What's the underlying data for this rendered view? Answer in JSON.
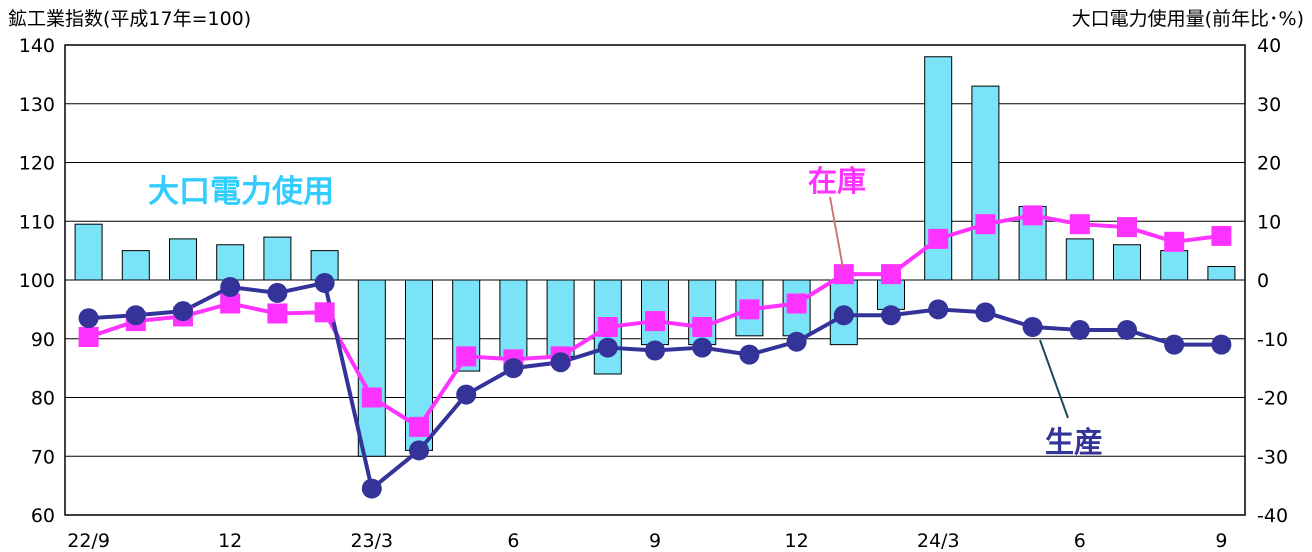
{
  "chart_data": {
    "type": "bar+line",
    "left_axis_title": "鉱工業指数(平成17年=100)",
    "right_axis_title": "大口電力使用量(前年比･%)",
    "left_axis": {
      "min": 60,
      "max": 140,
      "ticks": [
        60,
        70,
        80,
        90,
        100,
        110,
        120,
        130,
        140
      ]
    },
    "right_axis": {
      "min": -40,
      "max": 40,
      "ticks": [
        -40,
        -30,
        -20,
        -10,
        0,
        10,
        20,
        30,
        40
      ]
    },
    "grid": true,
    "x_tick_labels": [
      {
        "index": 0,
        "label": "22/9"
      },
      {
        "index": 3,
        "label": "12"
      },
      {
        "index": 6,
        "label": "23/3"
      },
      {
        "index": 9,
        "label": "6"
      },
      {
        "index": 12,
        "label": "9"
      },
      {
        "index": 15,
        "label": "12"
      },
      {
        "index": 18,
        "label": "24/3"
      },
      {
        "index": 21,
        "label": "6"
      },
      {
        "index": 24,
        "label": "9"
      }
    ],
    "series": [
      {
        "name": "大口電力使用",
        "kind": "bar",
        "axis": "right",
        "color": "#7be3f7",
        "values": [
          9.5,
          5,
          7,
          6,
          7.3,
          5,
          -30,
          -29,
          -15.5,
          -13.5,
          -13,
          -16,
          -11,
          -11,
          -9.5,
          -9.5,
          -11,
          -5,
          38,
          33,
          12.5,
          7,
          6,
          5,
          2.3
        ]
      },
      {
        "name": "在庫",
        "kind": "line",
        "axis": "left",
        "color": "#ff33ff",
        "values": [
          90.3,
          93,
          93.8,
          96,
          94.3,
          94.5,
          80,
          75,
          87,
          86.5,
          87,
          92,
          93,
          92,
          95,
          96,
          101,
          101,
          107,
          109.5,
          111,
          109.5,
          109,
          106.5,
          107.5
        ]
      },
      {
        "name": "生産",
        "kind": "line",
        "axis": "left",
        "color": "#333399",
        "values": [
          93.5,
          94,
          94.7,
          98.8,
          97.8,
          99.5,
          64.5,
          71,
          80.5,
          85,
          86,
          88.5,
          88,
          88.5,
          87.3,
          89.5,
          94,
          94,
          95,
          94.5,
          92,
          91.5,
          91.5,
          89,
          89
        ]
      }
    ],
    "annotations": {
      "power_label": "大口電力使用",
      "inventory_label": "在庫",
      "production_label": "生産"
    }
  }
}
